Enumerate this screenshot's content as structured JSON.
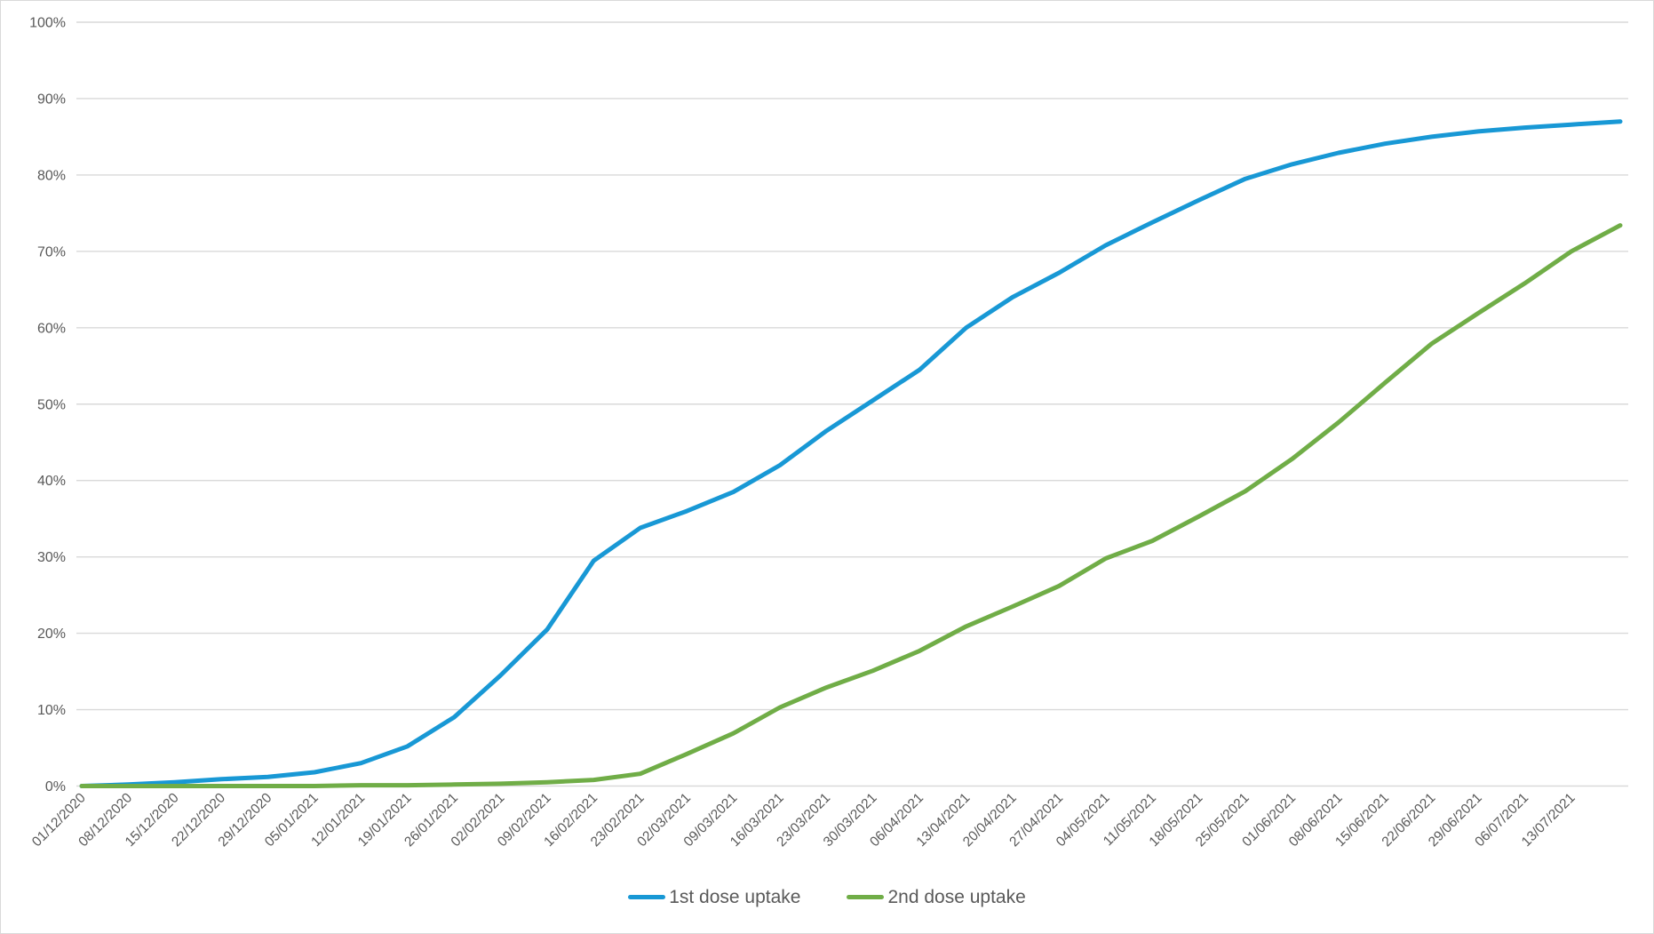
{
  "styles": {
    "background": "#FFFFFF",
    "border_color": "#D9D9D9",
    "grid_color": "#D9D9D9",
    "axis_text_color": "#595959"
  },
  "chart_data": {
    "type": "line",
    "title": "",
    "xlabel": "",
    "ylabel": "",
    "ylim": [
      0,
      100
    ],
    "y_tick_step": 10,
    "grid": true,
    "legend_position": "bottom",
    "y_ticks": [
      "0%",
      "10%",
      "20%",
      "30%",
      "40%",
      "50%",
      "60%",
      "70%",
      "80%",
      "90%",
      "100%"
    ],
    "x_labels": [
      "01/12/2020",
      "08/12/2020",
      "15/12/2020",
      "22/12/2020",
      "29/12/2020",
      "05/01/2021",
      "12/01/2021",
      "19/01/2021",
      "26/01/2021",
      "02/02/2021",
      "09/02/2021",
      "16/02/2021",
      "23/02/2021",
      "02/03/2021",
      "09/03/2021",
      "16/03/2021",
      "23/03/2021",
      "30/03/2021",
      "06/04/2021",
      "13/04/2021",
      "20/04/2021",
      "27/04/2021",
      "04/05/2021",
      "11/05/2021",
      "18/05/2021",
      "25/05/2021",
      "01/06/2021",
      "08/06/2021",
      "15/06/2021",
      "22/06/2021",
      "29/06/2021",
      "06/07/2021",
      "13/07/2021"
    ],
    "series": [
      {
        "name": "1st dose uptake",
        "color": "#1898D5",
        "values": [
          0,
          0.2,
          0.5,
          0.9,
          1.2,
          1.8,
          3.0,
          5.2,
          9.0,
          14.5,
          20.5,
          29.5,
          33.8,
          36.0,
          38.5,
          42.0,
          46.5,
          50.5,
          54.5,
          60.0,
          64.0,
          67.2,
          70.8,
          73.8,
          76.7,
          79.5,
          81.4,
          82.9,
          84.1,
          85.0,
          85.7,
          86.2,
          86.6
        ],
        "end_value": 87.0
      },
      {
        "name": "2nd dose uptake",
        "color": "#70AD47",
        "values": [
          0,
          0,
          0,
          0,
          0,
          0,
          0.1,
          0.1,
          0.2,
          0.3,
          0.5,
          0.8,
          1.6,
          4.2,
          6.9,
          10.3,
          12.9,
          15.1,
          17.7,
          20.9,
          23.5,
          26.2,
          29.8,
          32.1,
          35.3,
          38.6,
          42.8,
          47.6,
          52.8,
          57.9,
          61.9,
          65.8,
          70.0
        ],
        "end_value": 73.4
      }
    ]
  }
}
